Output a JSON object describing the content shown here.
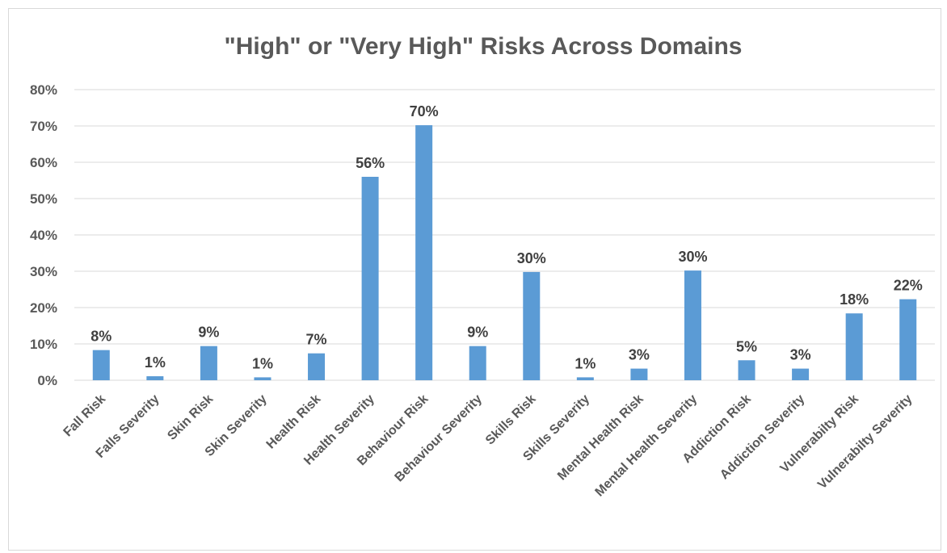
{
  "chart_data": {
    "type": "bar",
    "title": "\"High\" or \"Very High\" Risks Across Domains",
    "xlabel": "",
    "ylabel": "",
    "ylim": [
      0,
      80
    ],
    "yticks": [
      "0%",
      "10%",
      "20%",
      "30%",
      "40%",
      "50%",
      "60%",
      "70%",
      "80%"
    ],
    "grid": true,
    "legend": "none",
    "bar_color": "#5b9bd5",
    "categories": [
      "Fall Risk",
      "Falls Severity",
      "Skin Risk",
      "Skin Severity",
      "Health Risk",
      "Health Severity",
      "Behaviour Risk",
      "Behaviour Severity",
      "Skills Risk",
      "Skills Severity",
      "Mental Health Risk",
      "Mental Health Severity",
      "Addiction Risk",
      "Addiction Severity",
      "Vulnerabilty Risk",
      "Vulnerabilty Severity"
    ],
    "values": [
      8.3,
      1.1,
      9.4,
      0.8,
      7.4,
      56.0,
      70.2,
      9.4,
      29.8,
      0.8,
      3.2,
      30.2,
      5.5,
      3.2,
      18.4,
      22.3
    ],
    "data_labels": [
      "8%",
      "1%",
      "9%",
      "1%",
      "7%",
      "56%",
      "70%",
      "9%",
      "30%",
      "1%",
      "3%",
      "30%",
      "5%",
      "3%",
      "18%",
      "22%"
    ]
  }
}
